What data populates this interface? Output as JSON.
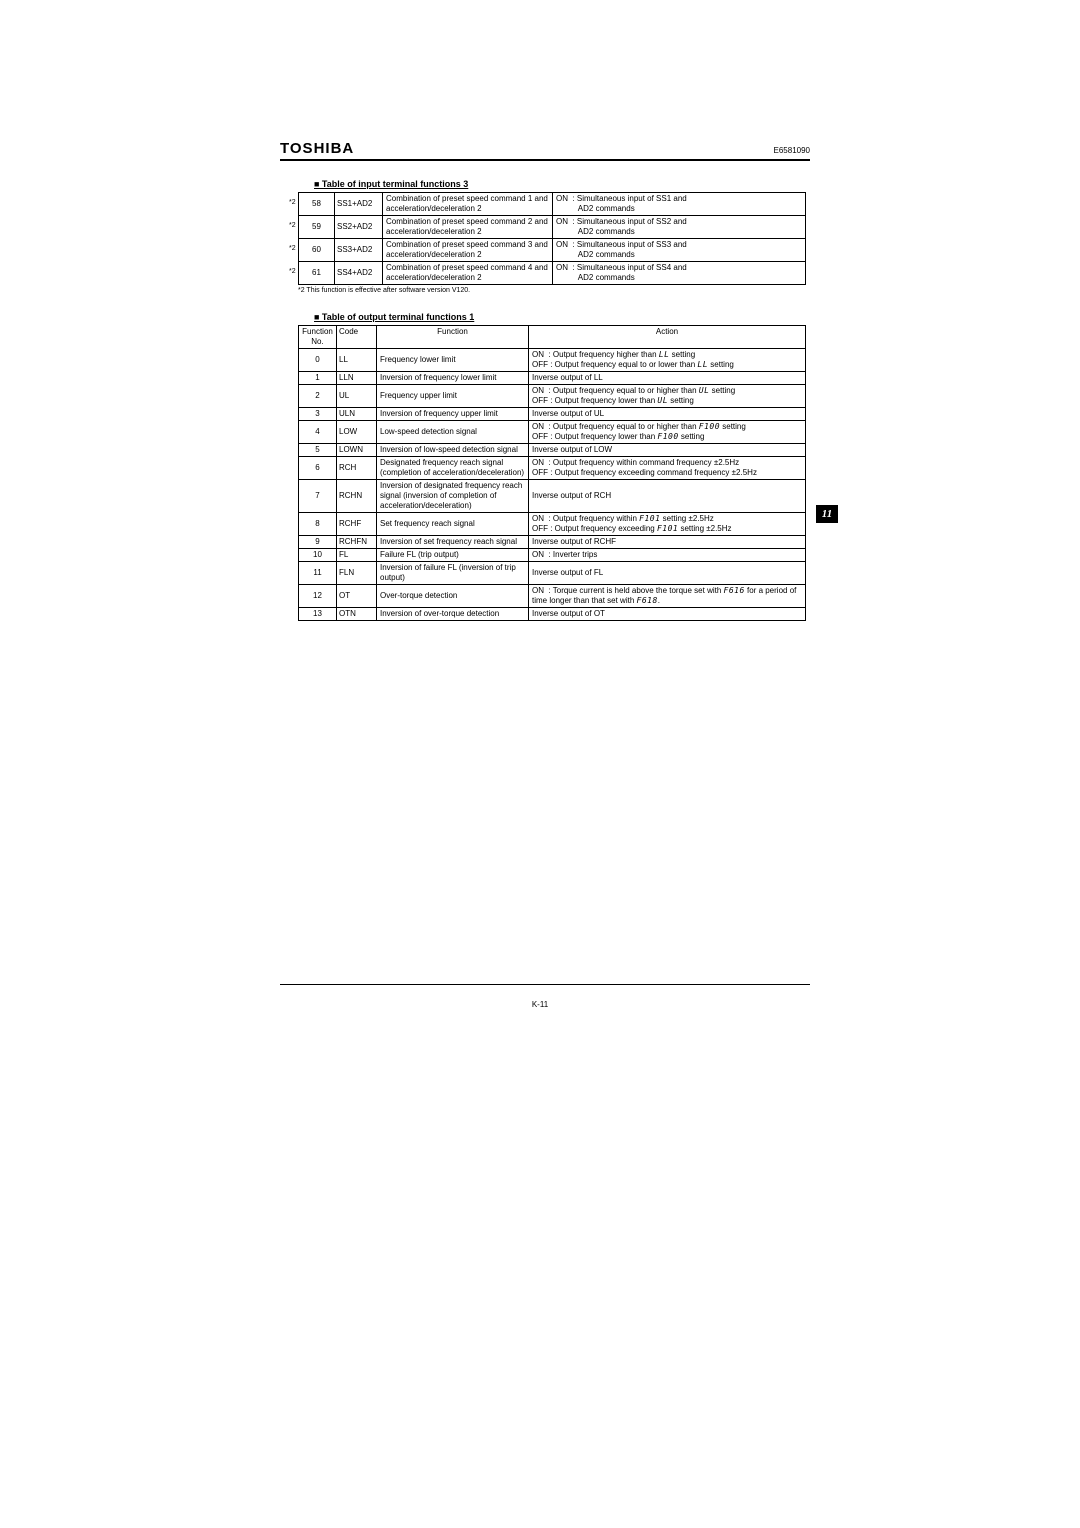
{
  "header": {
    "brand": "TOSHIBA",
    "docnum": "E6581090"
  },
  "section1": {
    "title": "■ Table of input terminal functions 3",
    "rows": [
      {
        "star": "*2",
        "num": "58",
        "code": "SS1+AD2",
        "func": "Combination of preset speed command 1 and acceleration/deceleration 2",
        "action": "ON  : Simultaneous input of SS1 and\n          AD2 commands"
      },
      {
        "star": "*2",
        "num": "59",
        "code": "SS2+AD2",
        "func": "Combination of preset speed command 2 and acceleration/deceleration 2",
        "action": "ON  : Simultaneous input of SS2 and\n          AD2 commands"
      },
      {
        "star": "*2",
        "num": "60",
        "code": "SS3+AD2",
        "func": "Combination of preset speed command 3 and acceleration/deceleration 2",
        "action": "ON  : Simultaneous input of SS3 and\n          AD2 commands"
      },
      {
        "star": "*2",
        "num": "61",
        "code": "SS4+AD2",
        "func": "Combination of preset speed command 4 and acceleration/deceleration 2",
        "action": "ON  : Simultaneous input of SS4 and\n          AD2 commands"
      }
    ],
    "footnote": "*2 This function is effective after software version V120."
  },
  "section2": {
    "title": "■ Table of output terminal functions 1",
    "headers": {
      "num": "Function No.",
      "code": "Code",
      "func": "Function",
      "action": "Action"
    },
    "rows": [
      {
        "num": "0",
        "code": "LL",
        "func": "Frequency lower limit",
        "action_html": "ON&nbsp;&nbsp;: Output frequency higher than <span class='seg'>LL</span> setting<br>OFF : Output frequency equal to or lower than <span class='seg'>LL</span> setting"
      },
      {
        "num": "1",
        "code": "LLN",
        "func": "Inversion of frequency lower limit",
        "action_html": "Inverse output of LL"
      },
      {
        "num": "2",
        "code": "UL",
        "func": "Frequency upper limit",
        "action_html": "ON&nbsp;&nbsp;: Output frequency equal to or higher than <span class='seg'>UL</span> setting<br>OFF : Output frequency lower than <span class='seg'>UL</span> setting"
      },
      {
        "num": "3",
        "code": "ULN",
        "func": "Inversion of frequency upper limit",
        "action_html": "Inverse output of UL"
      },
      {
        "num": "4",
        "code": "LOW",
        "func": "Low-speed detection signal",
        "action_html": "ON&nbsp;&nbsp;: Output frequency equal to or higher than <span class='seg'>F100</span> setting<br>OFF : Output frequency lower than <span class='seg'>F100</span> setting"
      },
      {
        "num": "5",
        "code": "LOWN",
        "func": "Inversion of low-speed detection signal",
        "action_html": "Inverse output of LOW"
      },
      {
        "num": "6",
        "code": "RCH",
        "func": "Designated frequency reach signal (completion of acceleration/deceleration)",
        "action_html": "ON&nbsp;&nbsp;: Output frequency within command frequency ±2.5Hz<br>OFF : Output frequency exceeding command frequency ±2.5Hz"
      },
      {
        "num": "7",
        "code": "RCHN",
        "func": "Inversion of designated frequency reach signal (inversion of completion of acceleration/deceleration)",
        "action_html": "Inverse output of RCH"
      },
      {
        "num": "8",
        "code": "RCHF",
        "func": "Set frequency reach signal",
        "action_html": "ON&nbsp;&nbsp;: Output frequency within <span class='seg'>F101</span> setting ±2.5Hz<br>OFF : Output frequency exceeding <span class='seg'>F101</span> setting ±2.5Hz"
      },
      {
        "num": "9",
        "code": "RCHFN",
        "func": "Inversion of set frequency reach signal",
        "action_html": "Inverse output of RCHF"
      },
      {
        "num": "10",
        "code": "FL",
        "func": "Failure FL (trip output)",
        "action_html": "ON&nbsp;&nbsp;: Inverter trips"
      },
      {
        "num": "11",
        "code": "FLN",
        "func": "Inversion of failure FL (inversion of trip output)",
        "action_html": "Inverse output of FL"
      },
      {
        "num": "12",
        "code": "OT",
        "func": "Over-torque detection",
        "action_html": "ON&nbsp;&nbsp;: Torque current is held above the torque set with <span class='seg'>F616</span> for a period of time longer than that set with <span class='seg'>F618</span>."
      },
      {
        "num": "13",
        "code": "OTN",
        "func": "Inversion of over-torque detection",
        "action_html": "Inverse output of OT"
      }
    ]
  },
  "tab": "11",
  "pagenum": "K-11"
}
